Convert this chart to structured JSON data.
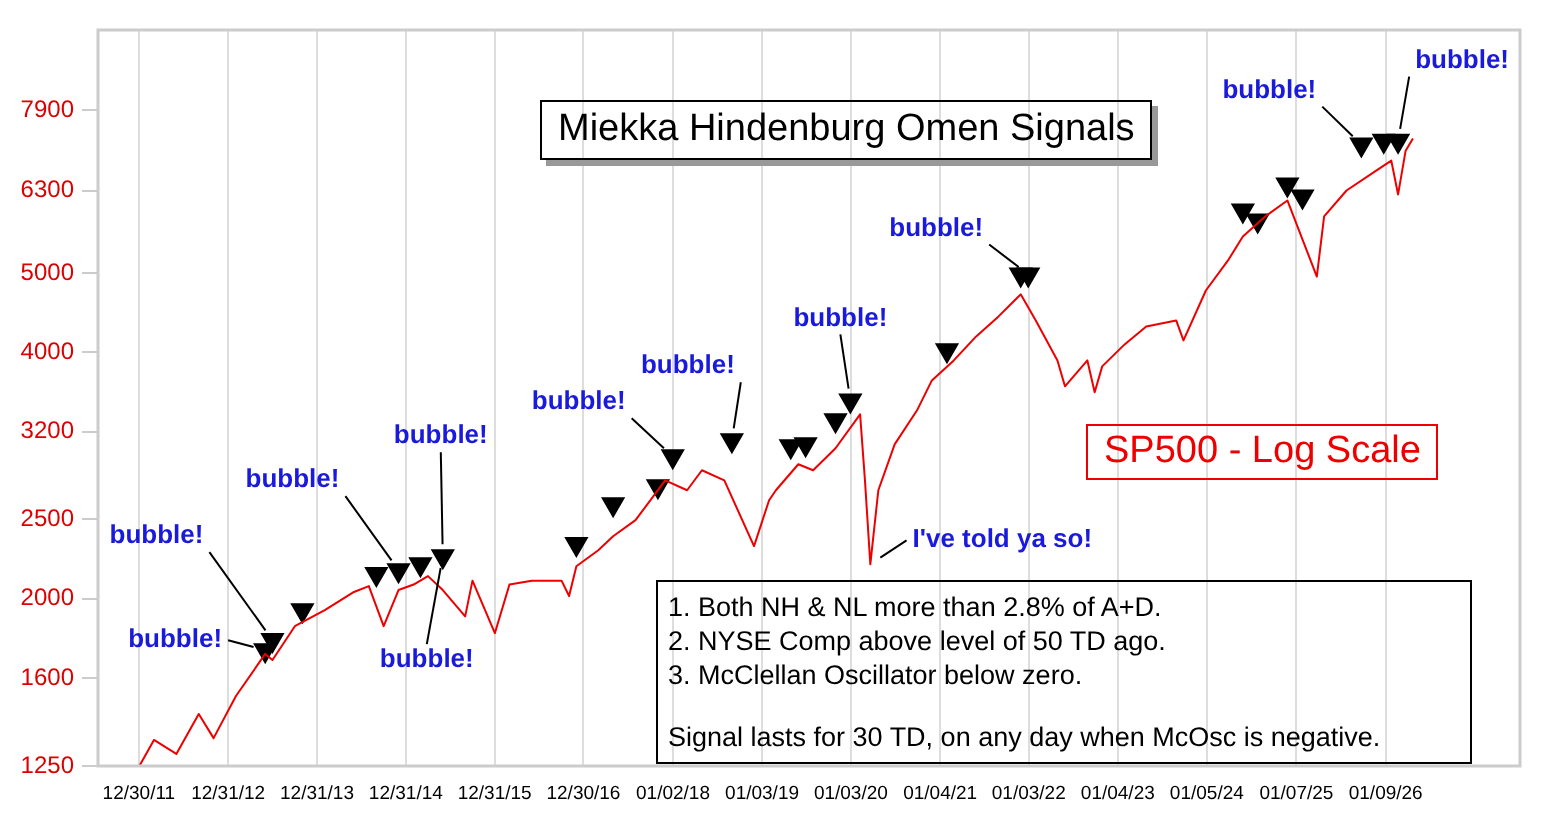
{
  "chart_data": {
    "type": "line",
    "title": "Miekka Hindenburg Omen Signals",
    "xlim": [
      "2011-07-15",
      "2027-07-15"
    ],
    "xticks": [
      {
        "value": "2011-12-30",
        "label": "12/30/11"
      },
      {
        "value": "2012-12-31",
        "label": "12/31/12"
      },
      {
        "value": "2013-12-31",
        "label": "12/31/13"
      },
      {
        "value": "2014-12-31",
        "label": "12/31/14"
      },
      {
        "value": "2015-12-31",
        "label": "12/31/15"
      },
      {
        "value": "2016-12-30",
        "label": "12/30/16"
      },
      {
        "value": "2018-01-02",
        "label": "01/02/18"
      },
      {
        "value": "2019-01-03",
        "label": "01/03/19"
      },
      {
        "value": "2020-01-03",
        "label": "01/03/20"
      },
      {
        "value": "2021-01-04",
        "label": "01/04/21"
      },
      {
        "value": "2022-01-03",
        "label": "01/03/22"
      },
      {
        "value": "2023-01-04",
        "label": "01/04/23"
      },
      {
        "value": "2024-01-05",
        "label": "01/05/24"
      },
      {
        "value": "2025-01-07",
        "label": "01/07/25"
      },
      {
        "value": "2026-01-09",
        "label": "01/09/26"
      }
    ],
    "ylim": [
      1250,
      9900
    ],
    "yticks": [
      1250,
      1600,
      2000,
      2500,
      3200,
      4000,
      5000,
      6300,
      7900
    ],
    "log": "y",
    "grid": "x",
    "legend": false,
    "series": [
      {
        "name": "SP500 - Log Scale",
        "color": "#ee0000",
        "marker": "none",
        "line_style": "solid",
        "x": [
          "2012-01",
          "2012-03",
          "2012-06",
          "2012-09",
          "2012-11",
          "2013-02",
          "2013-06",
          "2013-07",
          "2013-10",
          "2014-02",
          "2014-06",
          "2014-08",
          "2014-10",
          "2014-12",
          "2015-02",
          "2015-04",
          "2015-06",
          "2015-09",
          "2015-10",
          "2016-01",
          "2016-03",
          "2016-06",
          "2016-10",
          "2016-11",
          "2016-12",
          "2017-03",
          "2017-05",
          "2017-08",
          "2017-12",
          "2018-03",
          "2018-05",
          "2018-08",
          "2018-12",
          "2019-02",
          "2019-03",
          "2019-06",
          "2019-08",
          "2019-11",
          "2020-02-10",
          "2020-03-01",
          "2020-03-23",
          "2020-04-25",
          "2020-07",
          "2020-10",
          "2020-12",
          "2021-03",
          "2021-06",
          "2021-09",
          "2021-12",
          "2022-02",
          "2022-05",
          "2022-06",
          "2022-09",
          "2022-10",
          "2022-11",
          "2023-02",
          "2023-05",
          "2023-09",
          "2023-10",
          "2024-01",
          "2024-04",
          "2024-06",
          "2024-09",
          "2024-12",
          "2025-04",
          "2025-05",
          "2025-08",
          "2025-12",
          "2026-02",
          "2026-03",
          "2026-04",
          "2026-05"
        ],
        "values": [
          1250,
          1345,
          1293,
          1447,
          1352,
          1522,
          1713,
          1684,
          1852,
          1937,
          2039,
          2073,
          1852,
          2050,
          2082,
          2132,
          2050,
          1904,
          2105,
          1816,
          2082,
          2105,
          2105,
          2016,
          2192,
          2293,
          2385,
          2495,
          2791,
          2714,
          2871,
          2791,
          2319,
          2639,
          2714,
          2920,
          2871,
          3054,
          3360,
          2791,
          2204,
          2714,
          3088,
          3398,
          3696,
          3910,
          4183,
          4425,
          4708,
          4375,
          3910,
          3635,
          3910,
          3575,
          3845,
          4090,
          4302,
          4375,
          4136,
          4759,
          5179,
          5540,
          5861,
          6130,
          4950,
          5861,
          6304,
          6667,
          6857,
          6235,
          7052,
          7295
        ]
      },
      {
        "type": "scatter",
        "color": "#000000",
        "marker": "triangle",
        "x": [
          "2013-06",
          "2013-07",
          "2013-11",
          "2014-09",
          "2014-12",
          "2015-03",
          "2015-06",
          "2016-12",
          "2017-05",
          "2017-11",
          "2018-01",
          "2018-09",
          "2019-05",
          "2019-07",
          "2019-11",
          "2020-01",
          "2021-02",
          "2021-12",
          "2022-01",
          "2024-06",
          "2024-08",
          "2024-12",
          "2025-02",
          "2025-10",
          "2026-01",
          "2026-03"
        ],
        "values": [
          1731,
          1781,
          1937,
          2144,
          2168,
          2204,
          2255,
          2333,
          2610,
          2745,
          2986,
          3124,
          3071,
          3088,
          3304,
          3494,
          4023,
          4979,
          4979,
          5960,
          5795,
          6411,
          6198,
          7173,
          7252,
          7252
        ]
      }
    ],
    "annotations": [
      "1. Both NH & NL more than 2.8% of A+D.",
      "2. NYSE Comp above level of 50 TD ago.",
      "3. McClellan Oscillator below zero.",
      "Signal lasts for 30 TD, on any day when McOsc is negative.",
      {
        "text": "bubble!",
        "x": "2013-07",
        "y": 1781
      },
      {
        "text": "bubble!",
        "x": "2013-06",
        "y": 1731
      },
      {
        "text": "bubble!",
        "x": "2014-12",
        "y": 2168
      },
      {
        "text": "bubble!",
        "x": "2015-06",
        "y": 2255
      },
      {
        "text": "bubble!",
        "x": "2015-06",
        "y": 2255
      },
      {
        "text": "bubble!",
        "x": "2018-01",
        "y": 2986
      },
      {
        "text": "bubble!",
        "x": "2018-09",
        "y": 3124
      },
      {
        "text": "bubble!",
        "x": "2020-01",
        "y": 3494
      },
      {
        "text": "bubble!",
        "x": "2022-01",
        "y": 4979
      },
      {
        "text": "bubble!",
        "x": "2025-10",
        "y": 7173
      },
      {
        "text": "bubble!",
        "x": "2026-03",
        "y": 7252
      },
      {
        "text": "I've told ya so!",
        "x": "2020-03-23",
        "y": 2204
      }
    ]
  }
}
